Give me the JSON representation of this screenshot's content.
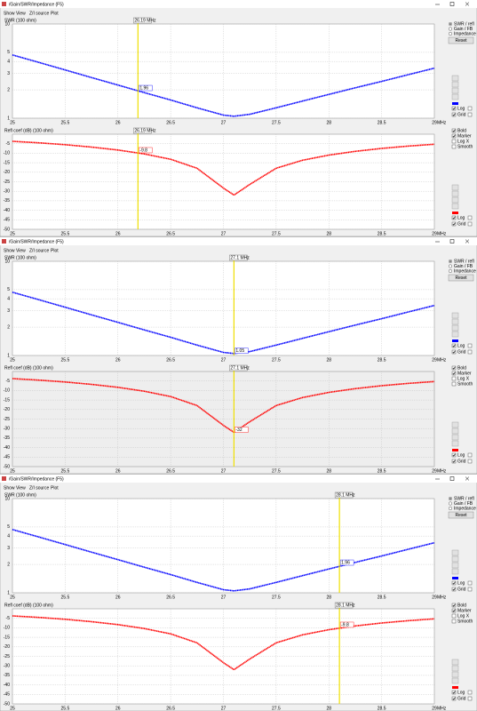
{
  "title": "/Gain/SWR/Impedance (F5)",
  "menu": [
    "Show",
    "View",
    "Z/I source",
    "Plot"
  ],
  "panel": {
    "modes": [
      "SWR / refl",
      "Gain / FB",
      "Impedance"
    ],
    "reset": "Reset",
    "axis_checks": [
      "Log",
      "Grid"
    ],
    "refl_checks": [
      "Bold",
      "Marker",
      "Log X",
      "Smooth"
    ]
  },
  "x_axis": {
    "xlim": [
      25,
      29
    ],
    "xticks": [
      25,
      25.5,
      26,
      26.5,
      27,
      27.5,
      28,
      28.5,
      29
    ],
    "unit": "MHz"
  },
  "swr_axis": {
    "title": "SWR (100 ohm)",
    "log": true,
    "ylim": [
      1,
      10
    ],
    "yticks": [
      1,
      2,
      3,
      4,
      5,
      10
    ],
    "color": "#0000ff"
  },
  "refl_axis": {
    "title": "Refl coef (dB) (100 ohm)",
    "ylim": [
      -50,
      0
    ],
    "yticks": [
      -5,
      -10,
      -15,
      -20,
      -25,
      -30,
      -35,
      -40,
      -45,
      -50
    ],
    "color": "#ff0000"
  },
  "curve": {
    "x": [
      25,
      25.25,
      25.5,
      25.75,
      26,
      26.25,
      26.5,
      26.75,
      27,
      27.1,
      27.25,
      27.5,
      27.75,
      28,
      28.25,
      28.5,
      28.75,
      29
    ],
    "swr": [
      4.7,
      3.91,
      3.25,
      2.7,
      2.25,
      1.87,
      1.56,
      1.29,
      1.08,
      1.05,
      1.1,
      1.29,
      1.52,
      1.79,
      2.1,
      2.46,
      2.89,
      3.4
    ],
    "refl": [
      -3.75,
      -4.54,
      -5.53,
      -6.76,
      -8.3,
      -10.37,
      -13.2,
      -17.9,
      -28.3,
      -32,
      -26.4,
      -17.9,
      -13.7,
      -10.96,
      -9,
      -7.49,
      -6.27,
      -5.27
    ]
  },
  "windows": [
    {
      "marker": {
        "x": 26.19,
        "label": "26.19 MHz"
      },
      "swr_value": 1.96,
      "refl_value": -9.8
    },
    {
      "marker": {
        "x": 27.1,
        "label": "27.1 MHz"
      },
      "swr_value": 1.05,
      "refl_value": -32
    },
    {
      "marker": {
        "x": 28.1,
        "label": "28.1 MHz"
      },
      "swr_value": 1.96,
      "refl_value": -9.8
    }
  ]
}
